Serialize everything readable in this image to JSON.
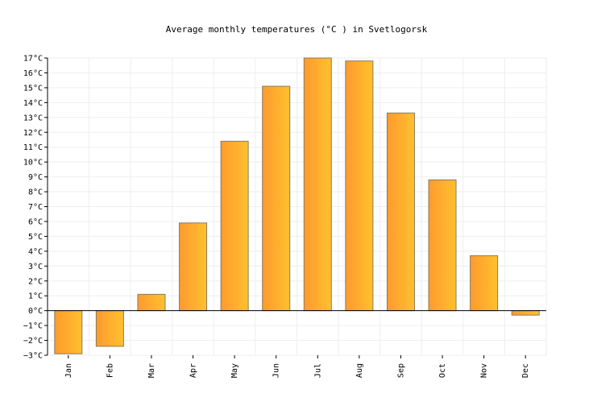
{
  "chart_data": {
    "type": "bar",
    "title": "Average monthly temperatures (°C ) in Svetlogorsk",
    "xlabel": "",
    "ylabel": "",
    "categories": [
      "Jan",
      "Feb",
      "Mar",
      "Apr",
      "May",
      "Jun",
      "Jul",
      "Aug",
      "Sep",
      "Oct",
      "Nov",
      "Dec"
    ],
    "values": [
      -2.9,
      -2.4,
      1.1,
      5.9,
      11.4,
      15.1,
      17.0,
      16.8,
      13.3,
      8.8,
      3.7,
      -0.3
    ],
    "ylim": [
      -3,
      17
    ],
    "y_ticks": [
      "−3°C",
      "−2°C",
      "−1°C",
      "0°C",
      "1°C",
      "2°C",
      "3°C",
      "4°C",
      "5°C",
      "6°C",
      "7°C",
      "8°C",
      "9°C",
      "10°C",
      "11°C",
      "12°C",
      "13°C",
      "14°C",
      "15°C",
      "16°C",
      "17°C"
    ],
    "grid": true,
    "legend": "none",
    "colors": {
      "bar_left": "#ff9a2e",
      "bar_right": "#ffc12e",
      "bar_stroke": "#8a7a60",
      "grid": "#eeeeee",
      "axis": "#000000"
    }
  }
}
